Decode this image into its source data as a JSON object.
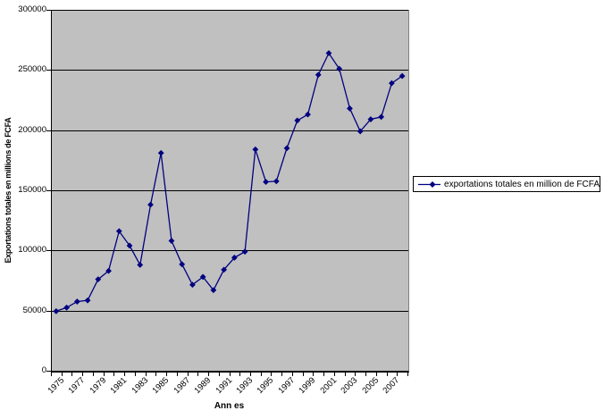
{
  "chart_data": {
    "type": "line",
    "title": "",
    "xlabel": "Ann es",
    "ylabel": "Exportations totales en millions de FCFA",
    "legend_entries": [
      "exportations totales en million de FCFA"
    ],
    "legend_position": "right",
    "grid": "horizontal",
    "ylim": [
      0,
      300000
    ],
    "ytick_interval": 50000,
    "ytick_labels": [
      "0",
      "50000",
      "100000",
      "150000",
      "200000",
      "250000",
      "300000"
    ],
    "xtick_label_step": 2,
    "categories": [
      1975,
      1976,
      1977,
      1978,
      1979,
      1980,
      1981,
      1982,
      1983,
      1984,
      1985,
      1986,
      1987,
      1988,
      1989,
      1990,
      1991,
      1992,
      1993,
      1994,
      1995,
      1996,
      1997,
      1998,
      1999,
      2000,
      2001,
      2002,
      2003,
      2004,
      2005,
      2006,
      2007,
      2008
    ],
    "series": [
      {
        "name": "exportations totales en million de FCFA",
        "values": [
          49500,
          52500,
          57500,
          58500,
          76000,
          83000,
          116000,
          104000,
          88000,
          138000,
          181000,
          108000,
          88500,
          71500,
          78000,
          67000,
          84000,
          94000,
          99000,
          184000,
          157000,
          157500,
          185000,
          208000,
          213000,
          246000,
          264000,
          251000,
          218000,
          199000,
          209000,
          211000,
          239000,
          245000
        ]
      }
    ],
    "colors": {
      "series_line": "#000080",
      "marker": "#000080",
      "plot_background": "#c0c0c0",
      "gridline": "#000000",
      "legend_border": "#000000",
      "text": "#000000"
    },
    "marker_shape": "diamond"
  }
}
